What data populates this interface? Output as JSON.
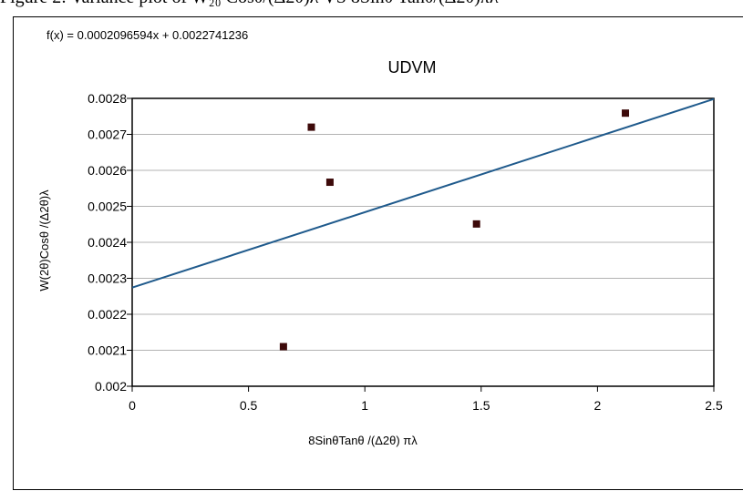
{
  "caption": "Figure 2: Variance plot of W₂₀ Cosθ/(Δ2θ)λ  VS  8Sinθ Tanθ/(Δ2θ)πλ",
  "chart_data": {
    "type": "scatter",
    "title": "UDVM",
    "equation": "f(x) = 0.0002096594x + 0.0022741236",
    "xlabel": "8SinθTanθ /(Δ2θ) πλ",
    "ylabel": "W(2θ)Cosθ /(Δ2θ)λ",
    "xlim": [
      0,
      2.5
    ],
    "ylim": [
      0.002,
      0.0028
    ],
    "x_ticks": [
      "0",
      "0.5",
      "1",
      "1.5",
      "2",
      "2.5"
    ],
    "y_ticks": [
      "0.002",
      "0.0021",
      "0.0022",
      "0.0023",
      "0.0024",
      "0.0025",
      "0.0026",
      "0.0027",
      "0.0028"
    ],
    "grid": "horizontal",
    "points": [
      {
        "x": 0.65,
        "y": 0.00211
      },
      {
        "x": 0.77,
        "y": 0.00272
      },
      {
        "x": 0.85,
        "y": 0.002567
      },
      {
        "x": 1.48,
        "y": 0.002451
      },
      {
        "x": 2.12,
        "y": 0.002759
      }
    ],
    "trendline": {
      "slope": 0.0002096594,
      "intercept": 0.0022741236
    },
    "colors": {
      "points": "#3d0a0a",
      "trendline": "#1f5a8c",
      "grid": "#b3b3b3",
      "axis": "#000000"
    }
  }
}
